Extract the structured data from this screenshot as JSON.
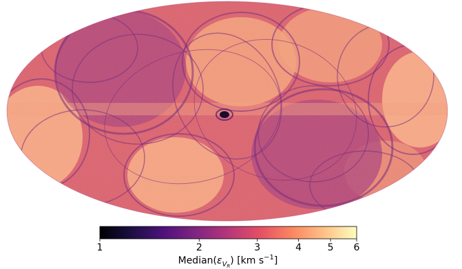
{
  "chart_data": {
    "type": "heatmap",
    "projection": "mollweide",
    "description_metric": "Median(ε_VR)",
    "colormap": "magma",
    "colorbar": {
      "orientation": "horizontal",
      "scale": "log",
      "range": [
        1,
        6
      ],
      "ticks": [
        {
          "value": 1,
          "label": "1"
        },
        {
          "value": 2,
          "label": "2"
        },
        {
          "value": 3,
          "label": "3"
        },
        {
          "value": 4,
          "label": "4"
        },
        {
          "value": 5,
          "label": "5"
        },
        {
          "value": 6,
          "label": "6"
        }
      ],
      "label_prefix": "Median(",
      "label_symbol": "ε",
      "label_sub": "V",
      "label_subsub": "R",
      "label_suffix": ") [km s",
      "label_exp": "−1",
      "label_close": "]"
    },
    "colors": {
      "magma": [
        "#000004",
        "#1c1044",
        "#4f127b",
        "#812581",
        "#b5367a",
        "#e55064",
        "#fb8761",
        "#fec287",
        "#fcfdbf"
      ]
    }
  }
}
